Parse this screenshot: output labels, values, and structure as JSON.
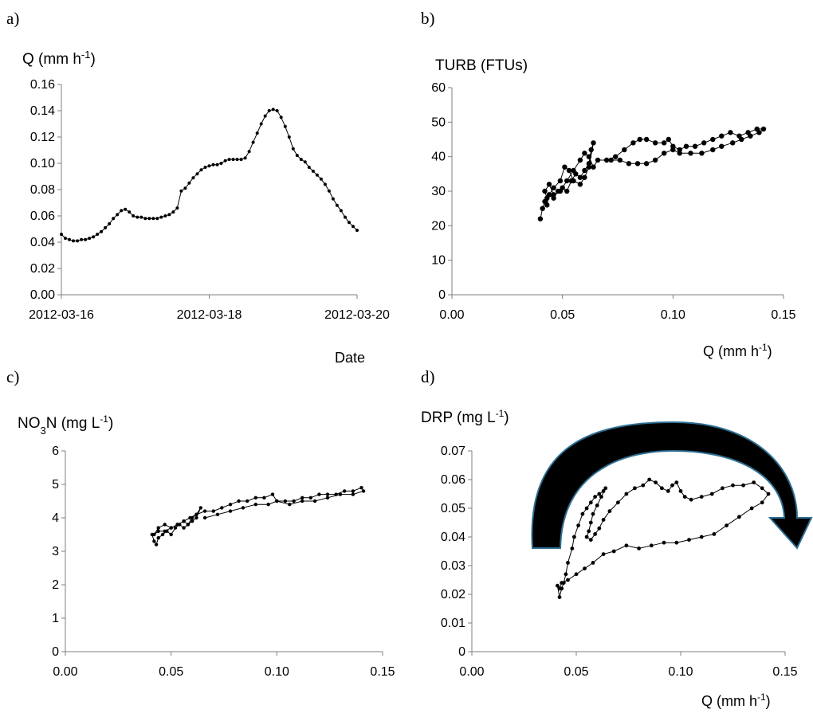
{
  "chart_data": [
    {
      "type": "line",
      "panel": "a)",
      "title": "Q (mm h-1)",
      "xlabel": "Date",
      "x_tick_labels": [
        "2012-03-16",
        "2012-03-18",
        "2012-03-20"
      ],
      "xlim": [
        "2012-03-16",
        "2012-03-20"
      ],
      "ylim": [
        0,
        0.16
      ],
      "y_tick_labels": [
        "0.00",
        "0.02",
        "0.04",
        "0.06",
        "0.08",
        "0.10",
        "0.12",
        "0.14",
        "0.16"
      ],
      "grid": false,
      "series": [
        {
          "values": [
            0.046,
            0.043,
            0.042,
            0.041,
            0.041,
            0.042,
            0.042,
            0.043,
            0.044,
            0.046,
            0.048,
            0.051,
            0.054,
            0.058,
            0.061,
            0.064,
            0.065,
            0.063,
            0.06,
            0.059,
            0.059,
            0.058,
            0.058,
            0.058,
            0.058,
            0.059,
            0.06,
            0.061,
            0.063,
            0.066,
            0.079,
            0.081,
            0.085,
            0.089,
            0.092,
            0.095,
            0.097,
            0.098,
            0.099,
            0.099,
            0.1,
            0.102,
            0.103,
            0.103,
            0.103,
            0.103,
            0.104,
            0.109,
            0.116,
            0.123,
            0.13,
            0.136,
            0.14,
            0.141,
            0.14,
            0.135,
            0.128,
            0.12,
            0.111,
            0.106,
            0.103,
            0.101,
            0.097,
            0.094,
            0.091,
            0.088,
            0.084,
            0.079,
            0.073,
            0.068,
            0.064,
            0.059,
            0.055,
            0.052,
            0.049
          ]
        }
      ]
    },
    {
      "type": "scatter",
      "panel": "b)",
      "title": "TURB (FTUs)",
      "xlabel": "Q (mm h-1)",
      "xlim": [
        0,
        0.15
      ],
      "ylim": [
        0,
        60
      ],
      "x_tick_labels": [
        "0.00",
        "0.05",
        "0.10",
        "0.15"
      ],
      "y_tick_labels": [
        "0",
        "10",
        "20",
        "30",
        "40",
        "50",
        "60"
      ],
      "grid": false,
      "series": [
        {
          "points": [
            [
              0.04,
              22
            ],
            [
              0.041,
              25
            ],
            [
              0.042,
              27
            ],
            [
              0.043,
              26
            ],
            [
              0.044,
              29
            ],
            [
              0.046,
              28
            ],
            [
              0.048,
              30
            ],
            [
              0.05,
              31
            ],
            [
              0.052,
              30
            ],
            [
              0.054,
              33
            ],
            [
              0.056,
              35
            ],
            [
              0.058,
              34
            ],
            [
              0.06,
              36
            ],
            [
              0.062,
              38
            ],
            [
              0.063,
              42
            ],
            [
              0.064,
              44
            ],
            [
              0.062,
              37
            ],
            [
              0.06,
              34
            ],
            [
              0.058,
              32
            ],
            [
              0.055,
              33
            ],
            [
              0.053,
              36
            ],
            [
              0.051,
              37
            ],
            [
              0.049,
              33
            ],
            [
              0.046,
              31
            ],
            [
              0.043,
              28
            ],
            [
              0.042,
              30
            ],
            [
              0.044,
              32
            ],
            [
              0.046,
              29
            ],
            [
              0.049,
              30
            ],
            [
              0.052,
              33
            ],
            [
              0.055,
              36
            ],
            [
              0.058,
              39
            ],
            [
              0.06,
              41
            ],
            [
              0.062,
              40
            ],
            [
              0.064,
              37
            ],
            [
              0.066,
              39
            ],
            [
              0.07,
              39
            ],
            [
              0.074,
              40
            ],
            [
              0.078,
              42
            ],
            [
              0.082,
              44
            ],
            [
              0.085,
              45
            ],
            [
              0.088,
              45
            ],
            [
              0.092,
              44
            ],
            [
              0.096,
              44
            ],
            [
              0.098,
              45
            ],
            [
              0.1,
              43
            ],
            [
              0.103,
              42
            ],
            [
              0.106,
              43
            ],
            [
              0.11,
              43
            ],
            [
              0.114,
              44
            ],
            [
              0.118,
              45
            ],
            [
              0.122,
              46
            ],
            [
              0.126,
              47
            ],
            [
              0.13,
              46
            ],
            [
              0.134,
              47
            ],
            [
              0.138,
              48
            ],
            [
              0.141,
              48
            ],
            [
              0.139,
              47
            ],
            [
              0.135,
              46
            ],
            [
              0.131,
              45
            ],
            [
              0.127,
              44
            ],
            [
              0.122,
              43
            ],
            [
              0.118,
              42
            ],
            [
              0.113,
              41
            ],
            [
              0.108,
              41
            ],
            [
              0.103,
              41
            ],
            [
              0.1,
              42
            ],
            [
              0.096,
              41
            ],
            [
              0.092,
              39
            ],
            [
              0.088,
              38
            ],
            [
              0.084,
              38
            ],
            [
              0.08,
              38
            ],
            [
              0.076,
              39
            ],
            [
              0.072,
              39
            ]
          ]
        }
      ]
    },
    {
      "type": "scatter",
      "panel": "c)",
      "title": "NO3N (mg L-1)",
      "xlabel": "",
      "xlim": [
        0,
        0.15
      ],
      "ylim": [
        0,
        6
      ],
      "x_tick_labels": [
        "0.00",
        "0.05",
        "0.10",
        "0.15"
      ],
      "y_tick_labels": [
        "0",
        "1",
        "2",
        "3",
        "4",
        "5",
        "6"
      ],
      "grid": false,
      "series": [
        {
          "points": [
            [
              0.041,
              3.5
            ],
            [
              0.042,
              3.3
            ],
            [
              0.043,
              3.2
            ],
            [
              0.044,
              3.4
            ],
            [
              0.046,
              3.5
            ],
            [
              0.048,
              3.6
            ],
            [
              0.05,
              3.5
            ],
            [
              0.052,
              3.7
            ],
            [
              0.054,
              3.8
            ],
            [
              0.056,
              3.7
            ],
            [
              0.058,
              3.8
            ],
            [
              0.06,
              4.0
            ],
            [
              0.062,
              4.1
            ],
            [
              0.064,
              4.3
            ],
            [
              0.062,
              4.0
            ],
            [
              0.06,
              3.9
            ],
            [
              0.058,
              3.8
            ],
            [
              0.056,
              3.9
            ],
            [
              0.053,
              3.8
            ],
            [
              0.05,
              3.7
            ],
            [
              0.047,
              3.6
            ],
            [
              0.044,
              3.6
            ],
            [
              0.042,
              3.5
            ],
            [
              0.044,
              3.7
            ],
            [
              0.047,
              3.8
            ],
            [
              0.05,
              3.7
            ],
            [
              0.053,
              3.8
            ],
            [
              0.056,
              3.9
            ],
            [
              0.059,
              4.0
            ],
            [
              0.062,
              4.1
            ],
            [
              0.066,
              4.2
            ],
            [
              0.07,
              4.2
            ],
            [
              0.074,
              4.3
            ],
            [
              0.078,
              4.4
            ],
            [
              0.082,
              4.5
            ],
            [
              0.086,
              4.5
            ],
            [
              0.09,
              4.6
            ],
            [
              0.094,
              4.6
            ],
            [
              0.098,
              4.7
            ],
            [
              0.1,
              4.5
            ],
            [
              0.104,
              4.5
            ],
            [
              0.108,
              4.5
            ],
            [
              0.112,
              4.6
            ],
            [
              0.116,
              4.6
            ],
            [
              0.12,
              4.7
            ],
            [
              0.124,
              4.7
            ],
            [
              0.128,
              4.7
            ],
            [
              0.132,
              4.8
            ],
            [
              0.136,
              4.8
            ],
            [
              0.14,
              4.9
            ],
            [
              0.141,
              4.8
            ],
            [
              0.136,
              4.7
            ],
            [
              0.13,
              4.7
            ],
            [
              0.124,
              4.6
            ],
            [
              0.118,
              4.5
            ],
            [
              0.112,
              4.5
            ],
            [
              0.106,
              4.4
            ],
            [
              0.1,
              4.5
            ],
            [
              0.096,
              4.4
            ],
            [
              0.09,
              4.4
            ],
            [
              0.084,
              4.3
            ],
            [
              0.078,
              4.2
            ],
            [
              0.072,
              4.1
            ],
            [
              0.066,
              4.0
            ]
          ]
        }
      ]
    },
    {
      "type": "scatter",
      "panel": "d)",
      "title": "DRP (mg L-1)",
      "xlabel": "Q (mm h-1)",
      "xlim": [
        0,
        0.15
      ],
      "ylim": [
        0,
        0.07
      ],
      "x_tick_labels": [
        "0.00",
        "0.05",
        "0.10",
        "0.15"
      ],
      "y_tick_labels": [
        "0",
        "0.01",
        "0.02",
        "0.03",
        "0.04",
        "0.05",
        "0.06",
        "0.07"
      ],
      "grid": false,
      "annotation": "clockwise-hysteresis-arrow",
      "series": [
        {
          "points": [
            [
              0.041,
              0.023
            ],
            [
              0.042,
              0.019
            ],
            [
              0.043,
              0.022
            ],
            [
              0.044,
              0.024
            ],
            [
              0.045,
              0.027
            ],
            [
              0.046,
              0.031
            ],
            [
              0.048,
              0.036
            ],
            [
              0.049,
              0.04
            ],
            [
              0.051,
              0.044
            ],
            [
              0.053,
              0.048
            ],
            [
              0.055,
              0.05
            ],
            [
              0.057,
              0.052
            ],
            [
              0.059,
              0.054
            ],
            [
              0.061,
              0.055
            ],
            [
              0.063,
              0.056
            ],
            [
              0.064,
              0.057
            ],
            [
              0.062,
              0.054
            ],
            [
              0.06,
              0.051
            ],
            [
              0.058,
              0.048
            ],
            [
              0.057,
              0.045
            ],
            [
              0.056,
              0.042
            ],
            [
              0.055,
              0.04
            ],
            [
              0.057,
              0.039
            ],
            [
              0.059,
              0.041
            ],
            [
              0.061,
              0.043
            ],
            [
              0.063,
              0.046
            ],
            [
              0.066,
              0.049
            ],
            [
              0.07,
              0.052
            ],
            [
              0.074,
              0.055
            ],
            [
              0.078,
              0.057
            ],
            [
              0.082,
              0.058
            ],
            [
              0.085,
              0.06
            ],
            [
              0.088,
              0.059
            ],
            [
              0.091,
              0.057
            ],
            [
              0.094,
              0.056
            ],
            [
              0.096,
              0.058
            ],
            [
              0.098,
              0.059
            ],
            [
              0.1,
              0.056
            ],
            [
              0.102,
              0.054
            ],
            [
              0.105,
              0.053
            ],
            [
              0.11,
              0.054
            ],
            [
              0.115,
              0.055
            ],
            [
              0.12,
              0.057
            ],
            [
              0.125,
              0.058
            ],
            [
              0.13,
              0.058
            ],
            [
              0.135,
              0.059
            ],
            [
              0.139,
              0.057
            ],
            [
              0.142,
              0.055
            ],
            [
              0.139,
              0.052
            ],
            [
              0.134,
              0.05
            ],
            [
              0.128,
              0.047
            ],
            [
              0.122,
              0.044
            ],
            [
              0.116,
              0.041
            ],
            [
              0.11,
              0.04
            ],
            [
              0.104,
              0.039
            ],
            [
              0.098,
              0.038
            ],
            [
              0.092,
              0.038
            ],
            [
              0.086,
              0.037
            ],
            [
              0.08,
              0.036
            ],
            [
              0.074,
              0.037
            ],
            [
              0.068,
              0.035
            ],
            [
              0.063,
              0.034
            ],
            [
              0.058,
              0.031
            ],
            [
              0.054,
              0.029
            ],
            [
              0.05,
              0.027
            ],
            [
              0.046,
              0.025
            ],
            [
              0.043,
              0.024
            ],
            [
              0.042,
              0.022
            ]
          ]
        }
      ]
    }
  ]
}
